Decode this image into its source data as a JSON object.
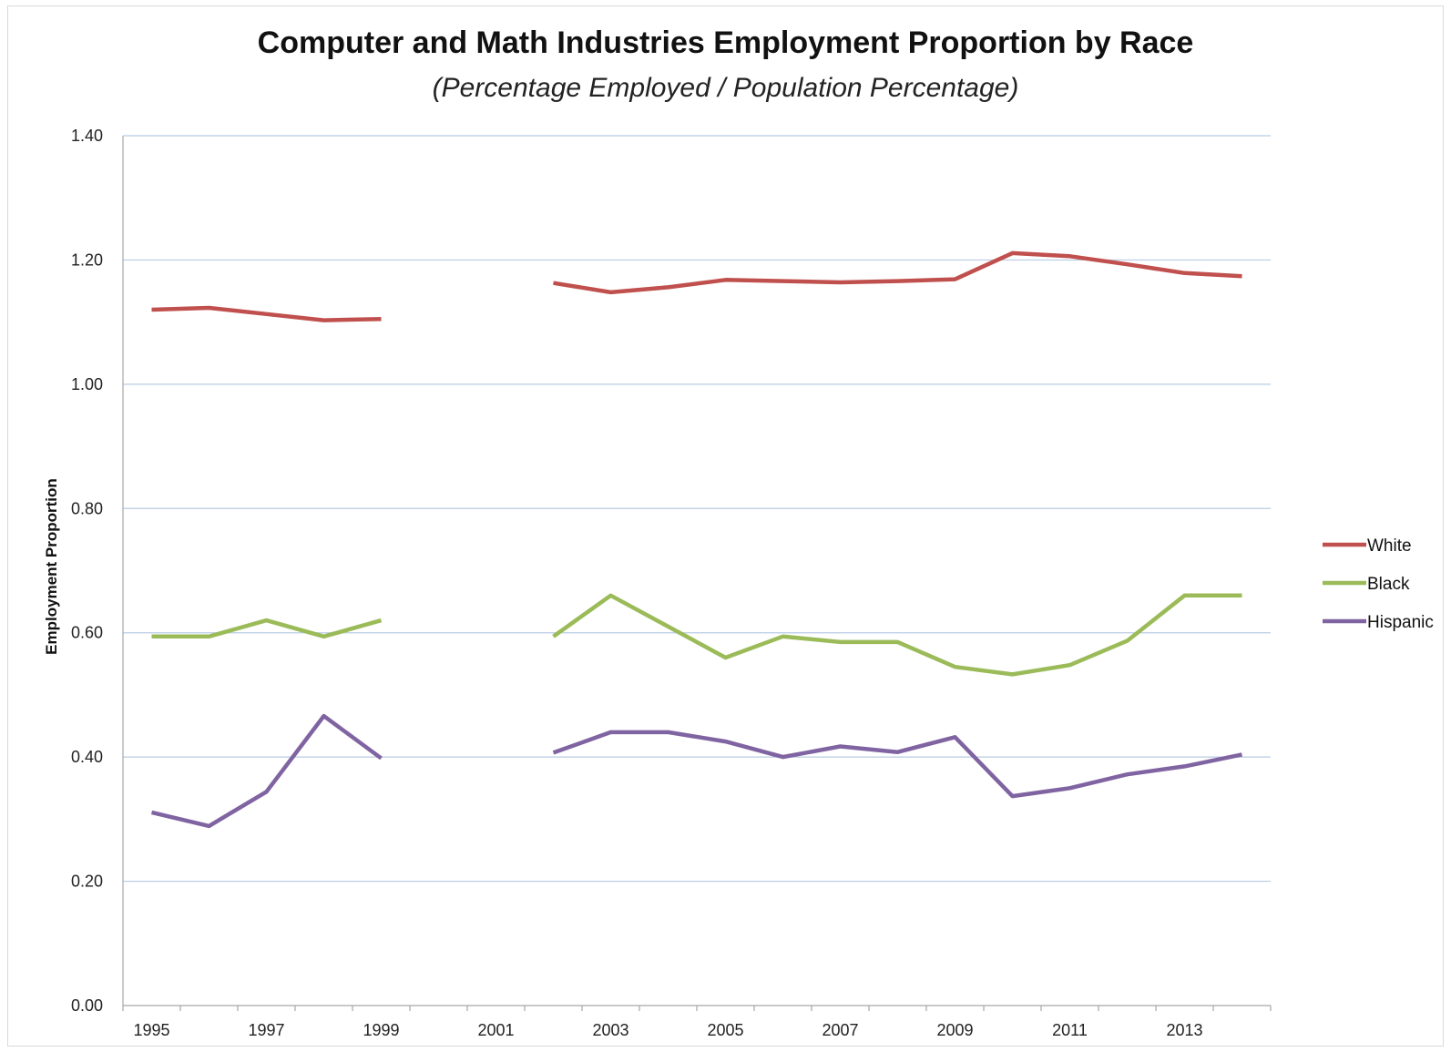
{
  "chart_data": {
    "type": "line",
    "title": "Computer and Math Industries Employment Proportion by Race",
    "subtitle": "(Percentage Employed / Population Percentage)",
    "ylabel": "Employment Proportion",
    "xlabel": "",
    "ylim": [
      0,
      1.4
    ],
    "y_ticks": [
      "0.00",
      "0.20",
      "0.40",
      "0.60",
      "0.80",
      "1.00",
      "1.20",
      "1.40"
    ],
    "x_tick_labels": [
      "1995",
      "1997",
      "1999",
      "2001",
      "2003",
      "2005",
      "2007",
      "2009",
      "2011",
      "2013"
    ],
    "x": [
      1995,
      1996,
      1997,
      1998,
      1999,
      2000,
      2001,
      2002,
      2003,
      2004,
      2005,
      2006,
      2007,
      2008,
      2009,
      2010,
      2011,
      2012,
      2013,
      2014
    ],
    "grid": true,
    "legend_position": "right",
    "series": [
      {
        "name": "White",
        "color": "#c0504d",
        "values": [
          1.12,
          1.123,
          1.113,
          1.103,
          1.105,
          null,
          null,
          1.163,
          1.148,
          1.156,
          1.168,
          1.166,
          1.164,
          1.166,
          1.169,
          1.211,
          1.206,
          1.193,
          1.179,
          1.174
        ]
      },
      {
        "name": "Black",
        "color": "#9bbb59",
        "values": [
          0.594,
          0.594,
          0.62,
          0.594,
          0.62,
          null,
          null,
          0.594,
          0.66,
          0.61,
          0.56,
          0.594,
          0.585,
          0.585,
          0.545,
          0.533,
          0.548,
          0.587,
          0.66,
          0.66
        ]
      },
      {
        "name": "Hispanic",
        "color": "#8064a2",
        "values": [
          0.311,
          0.289,
          0.344,
          0.466,
          0.398,
          null,
          null,
          0.407,
          0.44,
          0.44,
          0.425,
          0.4,
          0.417,
          0.408,
          0.432,
          0.337,
          0.35,
          0.372,
          0.385,
          0.404
        ]
      }
    ]
  }
}
